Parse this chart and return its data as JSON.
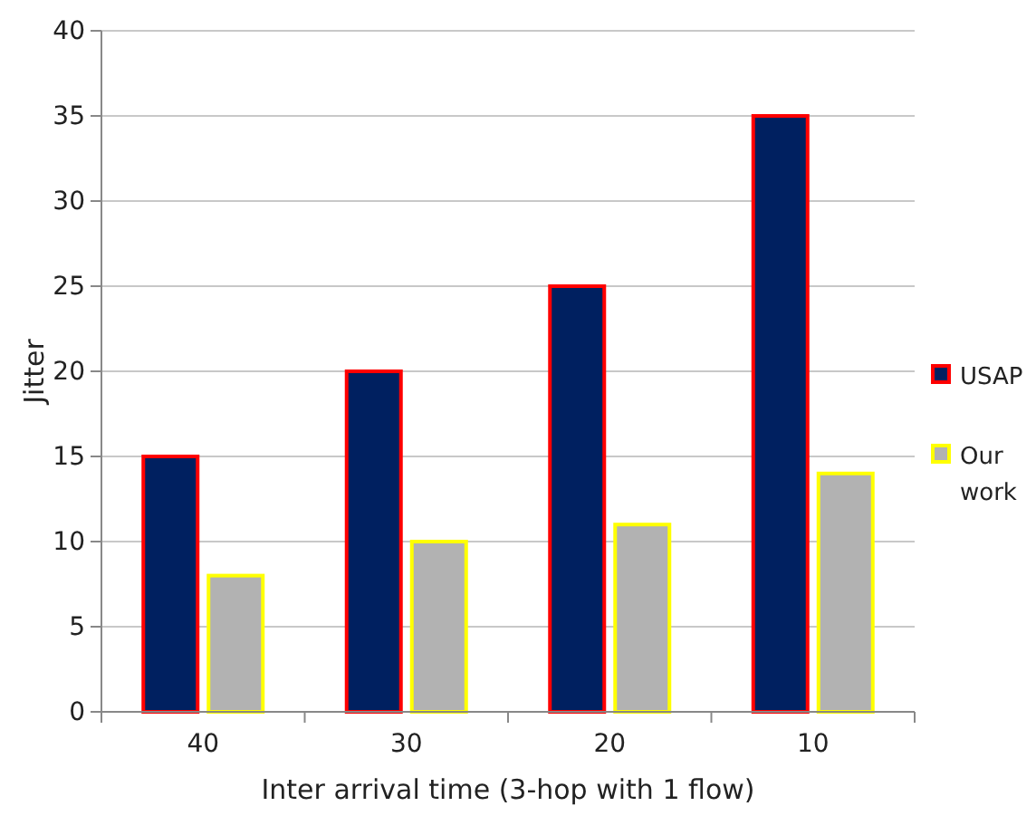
{
  "chart_data": {
    "type": "bar",
    "xlabel": "Inter arrival time (3-hop with 1 flow)",
    "ylabel": "Jitter",
    "categories": [
      "40",
      "30",
      "20",
      "10"
    ],
    "series": [
      {
        "name": "USAP",
        "color": "#002060",
        "values": [
          15,
          20,
          25,
          35
        ]
      },
      {
        "name": "Our work",
        "color": "#b2b2b2",
        "values": [
          8,
          10,
          11,
          14
        ]
      }
    ],
    "ylim": [
      0,
      40
    ],
    "yticks": [
      0,
      5,
      10,
      15,
      20,
      25,
      30,
      35,
      40
    ],
    "grid": "y",
    "legend": "right"
  }
}
